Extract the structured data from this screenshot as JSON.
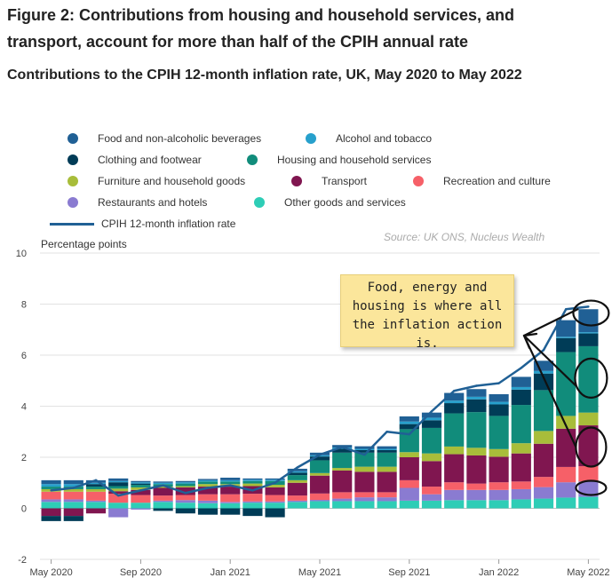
{
  "header": {
    "title": "Figure 2: Contributions from housing and household services, and transport, account for more than half of the CPIH annual rate",
    "subtitle": "Contributions to the CPIH 12-month inflation rate, UK, May 2020 to May 2022"
  },
  "source": "Source: UK ONS, Nucleus Wealth",
  "annotation": "Food, energy and housing is where all the inflation action is.",
  "chart_data": {
    "type": "bar",
    "stacked": true,
    "title": "Contributions to the CPIH 12-month inflation rate, UK, May 2020 to May 2022",
    "ylabel": "Percentage points",
    "ylim": [
      -2,
      10
    ],
    "yticks": [
      -2,
      0,
      2,
      4,
      6,
      8,
      10
    ],
    "categories": [
      "May 2020",
      "Jun 2020",
      "Jul 2020",
      "Aug 2020",
      "Sep 2020",
      "Oct 2020",
      "Nov 2020",
      "Dec 2020",
      "Jan 2021",
      "Feb 2021",
      "Mar 2021",
      "Apr 2021",
      "May 2021",
      "Jun 2021",
      "Jul 2021",
      "Aug 2021",
      "Sep 2021",
      "Oct 2021",
      "Nov 2021",
      "Dec 2021",
      "Jan 2022",
      "Feb 2022",
      "Mar 2022",
      "Apr 2022",
      "May 2022"
    ],
    "xtick_labels": [
      {
        "index": 0,
        "label": "May 2020"
      },
      {
        "index": 4,
        "label": "Sep 2020"
      },
      {
        "index": 8,
        "label": "Jan 2021"
      },
      {
        "index": 12,
        "label": "May 2021"
      },
      {
        "index": 16,
        "label": "Sep 2021"
      },
      {
        "index": 20,
        "label": "Jan 2022"
      },
      {
        "index": 24,
        "label": "May 2022"
      }
    ],
    "series": [
      {
        "name": "Other goods and services",
        "color": "#2ecdb6",
        "values": [
          0.25,
          0.25,
          0.25,
          0.22,
          0.22,
          0.25,
          0.22,
          0.2,
          0.2,
          0.22,
          0.22,
          0.25,
          0.28,
          0.28,
          0.28,
          0.28,
          0.3,
          0.3,
          0.32,
          0.32,
          0.32,
          0.35,
          0.38,
          0.42,
          0.45
        ]
      },
      {
        "name": "Restaurants and hotels",
        "color": "#8a7bd1",
        "values": [
          0.1,
          0.1,
          0.05,
          -0.35,
          -0.05,
          0.05,
          0.1,
          0.1,
          0.05,
          0.05,
          0.05,
          0.05,
          0.05,
          0.1,
          0.15,
          0.15,
          0.5,
          0.25,
          0.4,
          0.4,
          0.4,
          0.4,
          0.45,
          0.6,
          0.6
        ]
      },
      {
        "name": "Recreation and culture",
        "color": "#f66068",
        "values": [
          0.3,
          0.3,
          0.35,
          0.35,
          0.3,
          0.2,
          0.2,
          0.25,
          0.3,
          0.3,
          0.25,
          0.2,
          0.25,
          0.25,
          0.2,
          0.2,
          0.3,
          0.3,
          0.3,
          0.25,
          0.3,
          0.3,
          0.4,
          0.6,
          0.6
        ]
      },
      {
        "name": "Transport",
        "color": "#801650",
        "values": [
          -0.3,
          -0.3,
          -0.2,
          0.1,
          0.2,
          0.3,
          0.3,
          0.3,
          0.3,
          0.3,
          0.3,
          0.5,
          0.7,
          0.85,
          0.8,
          0.8,
          0.9,
          1.0,
          1.1,
          1.1,
          1.0,
          1.1,
          1.3,
          1.5,
          1.6
        ]
      },
      {
        "name": "Furniture and household goods",
        "color": "#a8bd3a",
        "values": [
          0.1,
          0.1,
          0.1,
          0.1,
          0.1,
          0.05,
          0.05,
          0.1,
          0.1,
          0.1,
          0.1,
          0.1,
          0.1,
          0.1,
          0.2,
          0.2,
          0.2,
          0.3,
          0.3,
          0.3,
          0.3,
          0.4,
          0.5,
          0.5,
          0.5
        ]
      },
      {
        "name": "Housing and household services",
        "color": "#118c7b",
        "values": [
          0.1,
          0.1,
          0.1,
          0.1,
          0.1,
          0.1,
          0.1,
          0.1,
          0.1,
          0.1,
          0.15,
          0.2,
          0.5,
          0.6,
          0.55,
          0.55,
          0.9,
          1.0,
          1.3,
          1.4,
          1.3,
          1.5,
          1.6,
          2.5,
          2.6
        ]
      },
      {
        "name": "Clothing and footwear",
        "color": "#003c57",
        "values": [
          -0.2,
          -0.2,
          0.1,
          0.15,
          0.05,
          -0.1,
          -0.2,
          -0.25,
          -0.25,
          -0.3,
          -0.35,
          0.1,
          0.15,
          0.15,
          0.1,
          0.1,
          0.2,
          0.3,
          0.4,
          0.5,
          0.45,
          0.6,
          0.65,
          0.55,
          0.5
        ]
      },
      {
        "name": "Alcohol and tobacco",
        "color": "#27a0cc",
        "values": [
          0.1,
          0.1,
          0.05,
          0.05,
          0.05,
          0.05,
          0.05,
          0.05,
          0.05,
          0.05,
          0.05,
          0.05,
          0.05,
          0.05,
          0.05,
          0.05,
          0.1,
          0.1,
          0.1,
          0.1,
          0.1,
          0.1,
          0.1,
          0.05,
          0.05
        ]
      },
      {
        "name": "Food and non-alcoholic beverages",
        "color": "#206095",
        "values": [
          0.15,
          0.15,
          0.1,
          0.1,
          0.05,
          0.05,
          0.05,
          0.05,
          0.1,
          0.05,
          0.05,
          0.1,
          0.1,
          0.1,
          0.1,
          0.1,
          0.2,
          0.2,
          0.3,
          0.3,
          0.3,
          0.4,
          0.4,
          0.65,
          0.9
        ]
      }
    ],
    "line": {
      "name": "CPIH 12-month inflation rate",
      "color": "#206095",
      "values": [
        0.7,
        0.8,
        1.1,
        0.5,
        0.7,
        0.9,
        0.6,
        0.8,
        0.9,
        0.7,
        1.0,
        1.6,
        2.1,
        2.4,
        2.1,
        3.0,
        2.9,
        3.8,
        4.6,
        4.8,
        4.9,
        5.5,
        6.2,
        7.8,
        7.9
      ]
    },
    "legend_placement": "top"
  }
}
